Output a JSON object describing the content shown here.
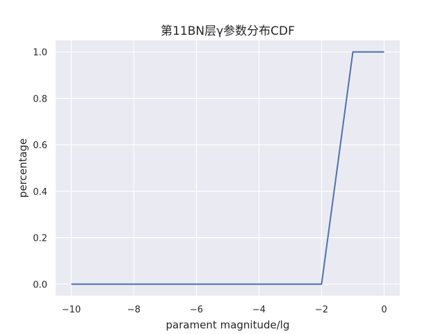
{
  "chart_data": {
    "type": "line",
    "title": "第11BN层γ参数分布CDF",
    "xlabel": "parament magnitude/lg",
    "ylabel": "percentage",
    "xlim": [
      -10.5,
      0.5
    ],
    "ylim": [
      -0.05,
      1.05
    ],
    "xticks": [
      -10,
      -8,
      -6,
      -4,
      -2,
      0
    ],
    "xtick_labels": [
      "−10",
      "−8",
      "−6",
      "−4",
      "−2",
      "0"
    ],
    "yticks": [
      0.0,
      0.2,
      0.4,
      0.6,
      0.8,
      1.0
    ],
    "ytick_labels": [
      "0.0",
      "0.2",
      "0.4",
      "0.6",
      "0.8",
      "1.0"
    ],
    "grid": true,
    "series": [
      {
        "color": "#4c72b0",
        "x": [
          -10,
          -9,
          -8,
          -7,
          -6,
          -5,
          -4,
          -3,
          -2,
          -1,
          0
        ],
        "y": [
          0,
          0,
          0,
          0,
          0,
          0,
          0,
          0,
          0,
          1,
          1
        ]
      }
    ]
  },
  "colors": {
    "plot_background": "#eaeaf2",
    "grid": "#ffffff"
  }
}
